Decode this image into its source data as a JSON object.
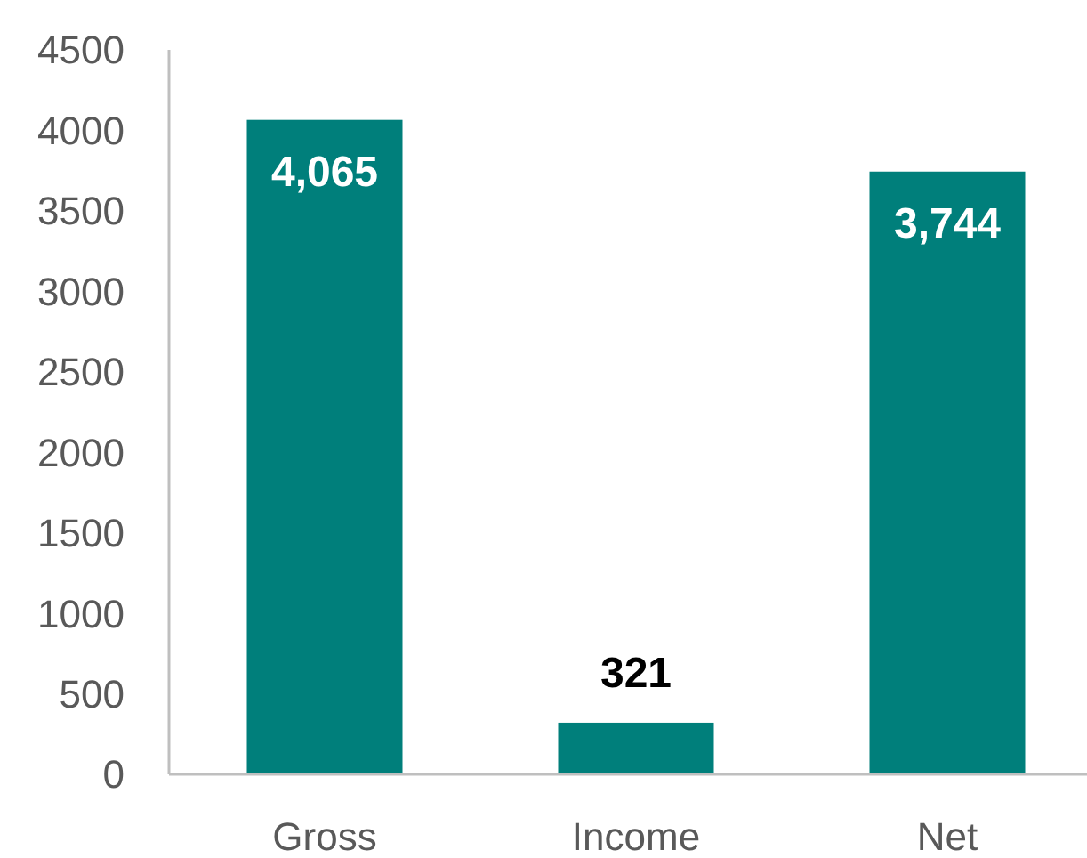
{
  "chart_data": {
    "type": "bar",
    "categories": [
      "Gross",
      "Income",
      "Net"
    ],
    "values": [
      4065,
      321,
      3744
    ],
    "value_labels": [
      "4,065",
      "321",
      "3,744"
    ],
    "color": "#007f7b",
    "ylim": [
      0,
      4500
    ],
    "yticks": [
      0,
      500,
      1000,
      1500,
      2000,
      2500,
      3000,
      3500,
      4000,
      4500
    ],
    "grid": false
  }
}
